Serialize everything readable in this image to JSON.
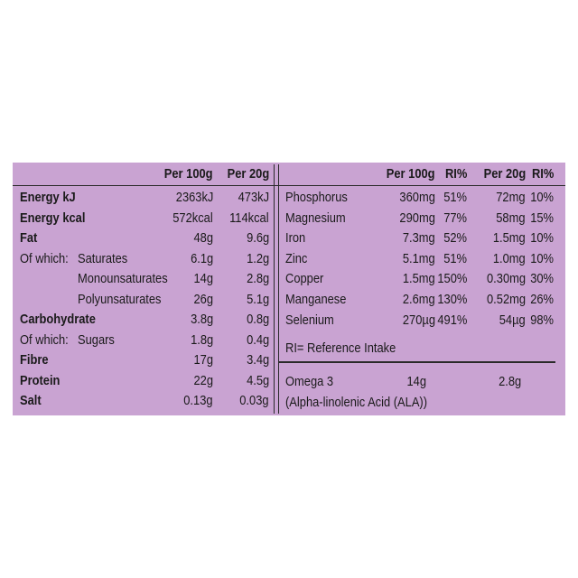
{
  "left_table": {
    "headers": [
      "Per 100g",
      "Per 20g"
    ],
    "rows": [
      {
        "label": "Energy kJ",
        "per_100g": "2363kJ",
        "per_20g": "473kJ",
        "bold": true
      },
      {
        "label": "Energy kcal",
        "per_100g": "572kcal",
        "per_20g": "114kcal",
        "bold": true
      },
      {
        "label": "Fat",
        "per_100g": "48g",
        "per_20g": "9.6g",
        "bold": true
      },
      {
        "label": "Of which:",
        "sublabel": "Saturates",
        "per_100g": "6.1g",
        "per_20g": "1.2g"
      },
      {
        "sublabel": "Monounsaturates",
        "per_100g": "14g",
        "per_20g": "2.8g"
      },
      {
        "sublabel": "Polyunsaturates",
        "per_100g": "26g",
        "per_20g": "5.1g"
      },
      {
        "label": "Carbohydrate",
        "per_100g": "3.8g",
        "per_20g": "0.8g",
        "bold": true
      },
      {
        "label": "Of which:",
        "sublabel": "Sugars",
        "per_100g": "1.8g",
        "per_20g": "0.4g"
      },
      {
        "label": "Fibre",
        "per_100g": "17g",
        "per_20g": "3.4g",
        "bold": true
      },
      {
        "label": "Protein",
        "per_100g": "22g",
        "per_20g": "4.5g",
        "bold": true
      },
      {
        "label": "Salt",
        "per_100g": "0.13g",
        "per_20g": "0.03g",
        "bold": true
      }
    ]
  },
  "right_table": {
    "headers": [
      "Per 100g",
      "RI%",
      "Per 20g",
      "RI%"
    ],
    "rows": [
      {
        "label": "Phosphorus",
        "per_100g": "360mg",
        "ri_100g": "51%",
        "per_20g": "72mg",
        "ri_20g": "10%"
      },
      {
        "label": "Magnesium",
        "per_100g": "290mg",
        "ri_100g": "77%",
        "per_20g": "58mg",
        "ri_20g": "15%"
      },
      {
        "label": "Iron",
        "per_100g": "7.3mg",
        "ri_100g": "52%",
        "per_20g": "1.5mg",
        "ri_20g": "10%"
      },
      {
        "label": "Zinc",
        "per_100g": "5.1mg",
        "ri_100g": "51%",
        "per_20g": "1.0mg",
        "ri_20g": "10%"
      },
      {
        "label": "Copper",
        "per_100g": "1.5mg",
        "ri_100g": "150%",
        "per_20g": "0.30mg",
        "ri_20g": "30%"
      },
      {
        "label": "Manganese",
        "per_100g": "2.6mg",
        "ri_100g": "130%",
        "per_20g": "0.52mg",
        "ri_20g": "26%"
      },
      {
        "label": "Selenium",
        "per_100g": "270µg",
        "ri_100g": "491%",
        "per_20g": "54µg",
        "ri_20g": "98%"
      }
    ],
    "footnote": "RI= Reference Intake",
    "omega": {
      "label": "Omega 3",
      "per_100g": "14g",
      "per_20g": "2.8g",
      "sublabel": "(Alpha-linolenic Acid (ALA))"
    }
  }
}
